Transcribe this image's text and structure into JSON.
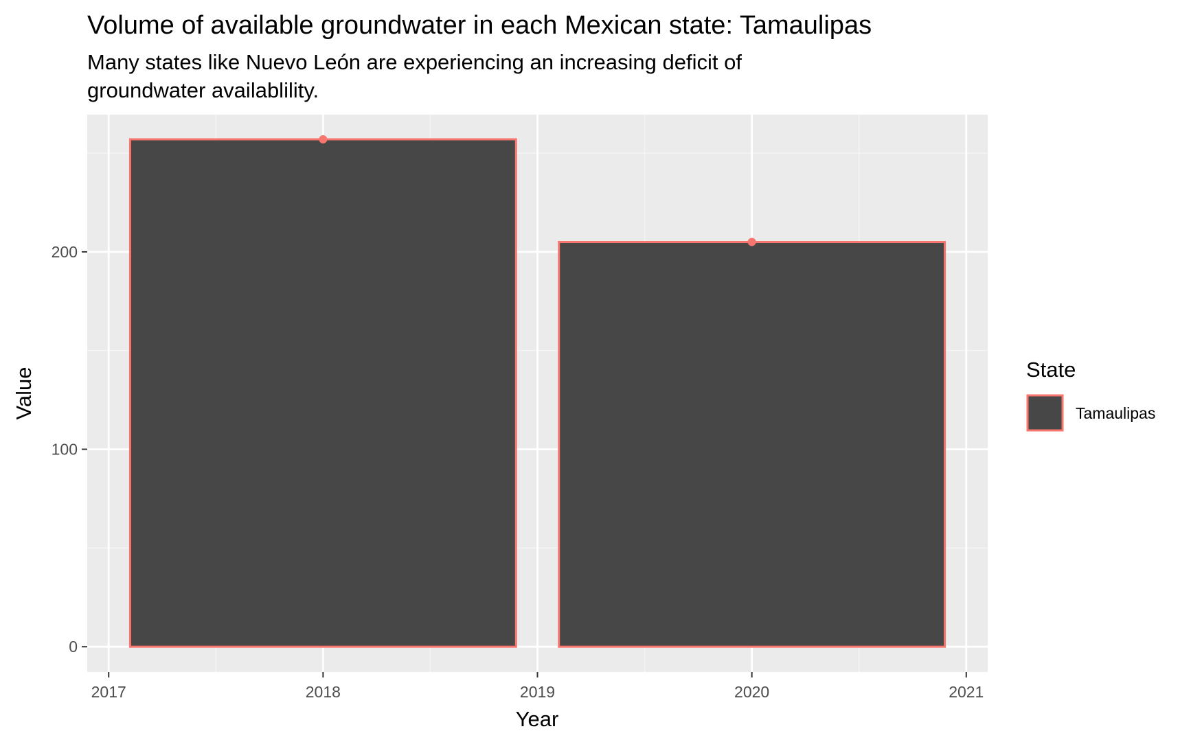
{
  "chart_data": {
    "type": "bar",
    "title": "Volume of available groundwater in each Mexican state: Tamaulipas",
    "subtitle_lines": [
      "Many states like Nuevo León are experiencing an increasing deficit of",
      "groundwater availablility."
    ],
    "xlabel": "Year",
    "ylabel": "Value",
    "x_ticks": [
      2017,
      2018,
      2019,
      2020,
      2021
    ],
    "y_ticks": [
      0,
      100,
      200
    ],
    "xlim": [
      2016.9,
      2021.1
    ],
    "ylim": [
      -12.8,
      269.5
    ],
    "grid": true,
    "legend": {
      "title": "State",
      "position": "right",
      "entries": [
        "Tamaulipas"
      ]
    },
    "bar_width_years": 1.8,
    "series": [
      {
        "name": "Tamaulipas",
        "x": [
          2018,
          2020
        ],
        "values": [
          257,
          205
        ]
      }
    ],
    "colors": {
      "bar_fill": "#474747",
      "bar_outline": "#F8766D",
      "point": "#F8766D",
      "panel_bg": "#EBEBEB",
      "grid_major": "#FFFFFF",
      "grid_minor": "#F5F5F5"
    }
  }
}
